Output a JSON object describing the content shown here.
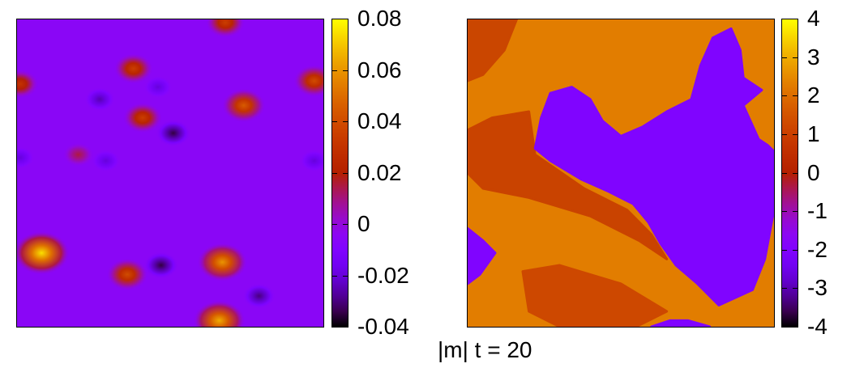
{
  "caption": "|m| t = 20",
  "chart_data": [
    {
      "type": "heatmap",
      "colormap": "gnuplot-pm3d (black-purple-red-orange-yellow)",
      "colorbar": {
        "range": [
          -0.04,
          0.08
        ],
        "ticks": [
          {
            "value": -0.04,
            "label": "-0.04"
          },
          {
            "value": -0.02,
            "label": "-0.02"
          },
          {
            "value": 0,
            "label": "0"
          },
          {
            "value": 0.02,
            "label": "0.02"
          },
          {
            "value": 0.04,
            "label": "0.04"
          },
          {
            "value": 0.06,
            "label": "0.06"
          },
          {
            "value": 0.08,
            "label": "0.08"
          }
        ]
      },
      "background_value": -0.005,
      "blobs": [
        {
          "x": 0.08,
          "y": 0.76,
          "value": 0.075
        },
        {
          "x": 0.67,
          "y": 0.79,
          "value": 0.06
        },
        {
          "x": 0.66,
          "y": 0.98,
          "value": 0.065
        },
        {
          "x": 0.36,
          "y": 0.83,
          "value": 0.04
        },
        {
          "x": 0.74,
          "y": 0.28,
          "value": 0.045
        },
        {
          "x": 0.41,
          "y": 0.32,
          "value": 0.035
        },
        {
          "x": 0.38,
          "y": 0.16,
          "value": 0.035
        },
        {
          "x": 0.97,
          "y": 0.2,
          "value": 0.04
        },
        {
          "x": 0.68,
          "y": 0.01,
          "value": 0.035
        },
        {
          "x": 0.01,
          "y": 0.21,
          "value": 0.03
        },
        {
          "x": 0.2,
          "y": 0.44,
          "value": 0.015
        },
        {
          "x": 0.51,
          "y": 0.37,
          "value": -0.035
        },
        {
          "x": 0.47,
          "y": 0.8,
          "value": -0.035
        },
        {
          "x": 0.79,
          "y": 0.9,
          "value": -0.03
        },
        {
          "x": 0.27,
          "y": 0.26,
          "value": -0.025
        },
        {
          "x": 0.46,
          "y": 0.22,
          "value": -0.02
        },
        {
          "x": 0.29,
          "y": 0.46,
          "value": -0.02
        },
        {
          "x": 0.01,
          "y": 0.45,
          "value": -0.02
        },
        {
          "x": 0.97,
          "y": 0.46,
          "value": -0.02
        }
      ]
    },
    {
      "type": "heatmap",
      "colormap": "gnuplot-pm3d (black-purple-red-orange-yellow)",
      "colorbar": {
        "range": [
          -4,
          4
        ],
        "ticks": [
          {
            "value": -4,
            "label": "-4"
          },
          {
            "value": -3,
            "label": "-3"
          },
          {
            "value": -2,
            "label": "-2"
          },
          {
            "value": -1,
            "label": "-1"
          },
          {
            "value": 0,
            "label": "0"
          },
          {
            "value": 1,
            "label": "1"
          },
          {
            "value": 2,
            "label": "2"
          },
          {
            "value": 3,
            "label": "3"
          },
          {
            "value": 4,
            "label": "4"
          }
        ]
      },
      "background_value": 2.3,
      "regions": [
        {
          "value": -2.0,
          "points": [
            [
              0.27,
              0.24
            ],
            [
              0.34,
              0.22
            ],
            [
              0.4,
              0.26
            ],
            [
              0.44,
              0.33
            ],
            [
              0.5,
              0.38
            ],
            [
              0.57,
              0.35
            ],
            [
              0.65,
              0.3
            ],
            [
              0.73,
              0.26
            ],
            [
              0.76,
              0.15
            ],
            [
              0.8,
              0.06
            ],
            [
              0.86,
              0.03
            ],
            [
              0.89,
              0.1
            ],
            [
              0.9,
              0.19
            ],
            [
              0.96,
              0.23
            ],
            [
              0.9,
              0.28
            ],
            [
              0.95,
              0.39
            ],
            [
              0.98,
              0.41
            ],
            [
              1.0,
              0.43
            ],
            [
              1.0,
              0.62
            ],
            [
              0.97,
              0.78
            ],
            [
              0.93,
              0.88
            ],
            [
              0.82,
              0.93
            ],
            [
              0.75,
              0.86
            ],
            [
              0.68,
              0.8
            ],
            [
              0.63,
              0.73
            ],
            [
              0.59,
              0.66
            ],
            [
              0.54,
              0.6
            ],
            [
              0.46,
              0.56
            ],
            [
              0.37,
              0.52
            ],
            [
              0.27,
              0.46
            ],
            [
              0.22,
              0.42
            ],
            [
              0.24,
              0.32
            ]
          ]
        },
        {
          "value": -2.0,
          "points": [
            [
              0.0,
              0.68
            ],
            [
              0.05,
              0.72
            ],
            [
              0.09,
              0.76
            ],
            [
              0.04,
              0.83
            ],
            [
              0.0,
              0.86
            ]
          ]
        },
        {
          "value": -2.0,
          "points": [
            [
              0.6,
              1.0
            ],
            [
              0.66,
              0.98
            ],
            [
              0.72,
              0.98
            ],
            [
              0.79,
              1.0
            ]
          ]
        },
        {
          "value": 0.7,
          "points": [
            [
              0.0,
              0.0
            ],
            [
              0.16,
              0.0
            ],
            [
              0.12,
              0.1
            ],
            [
              0.05,
              0.18
            ],
            [
              0.0,
              0.2
            ]
          ]
        },
        {
          "value": 0.6,
          "points": [
            [
              0.0,
              0.36
            ],
            [
              0.08,
              0.32
            ],
            [
              0.2,
              0.3
            ],
            [
              0.22,
              0.44
            ],
            [
              0.38,
              0.55
            ],
            [
              0.52,
              0.62
            ],
            [
              0.6,
              0.7
            ],
            [
              0.65,
              0.78
            ],
            [
              0.56,
              0.72
            ],
            [
              0.4,
              0.64
            ],
            [
              0.2,
              0.58
            ],
            [
              0.05,
              0.55
            ],
            [
              0.0,
              0.5
            ]
          ]
        },
        {
          "value": 0.8,
          "points": [
            [
              0.18,
              0.82
            ],
            [
              0.3,
              0.8
            ],
            [
              0.5,
              0.86
            ],
            [
              0.65,
              0.95
            ],
            [
              0.55,
              1.0
            ],
            [
              0.3,
              1.0
            ],
            [
              0.2,
              0.95
            ]
          ]
        }
      ]
    }
  ]
}
